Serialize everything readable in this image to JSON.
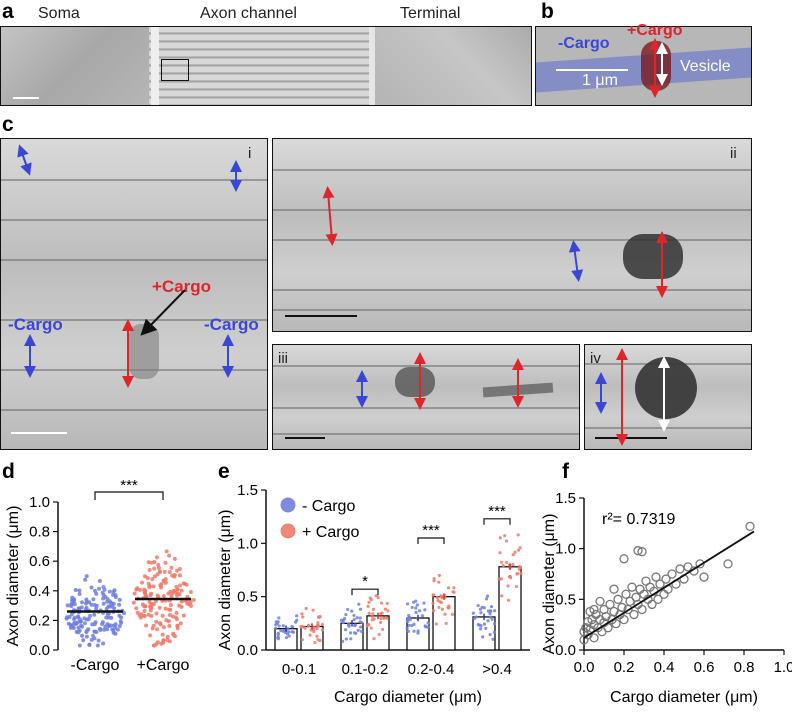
{
  "panel_a": {
    "label": "a",
    "headers": [
      "Soma",
      "Axon channel",
      "Terminal"
    ]
  },
  "panel_b": {
    "label": "b",
    "minus_cargo": "-Cargo",
    "plus_cargo": "+Cargo",
    "vesicle": "Vesicle",
    "scale": "1 μm"
  },
  "panel_c": {
    "label": "c",
    "sub": [
      "i",
      "ii",
      "iii",
      "iv"
    ],
    "plus_cargo": "+Cargo",
    "minus_cargo_left": "-Cargo",
    "minus_cargo_right": "-Cargo"
  },
  "colors": {
    "blue": "#3a47d6",
    "red": "#e0242b",
    "blue_dot": "#6f7fe0",
    "red_dot": "#ef7a6a"
  },
  "chart_data": [
    {
      "panel": "d",
      "type": "scatter",
      "ylabel": "Axon diameter (μm)",
      "yticks": [
        "0.0",
        "0.2",
        "0.4",
        "0.6",
        "0.8",
        "1.0"
      ],
      "ylim": [
        0,
        1.0
      ],
      "categories": [
        "-Cargo",
        "+Cargo"
      ],
      "means": [
        0.26,
        0.345
      ],
      "significance": "***"
    },
    {
      "panel": "e",
      "type": "bar",
      "ylabel": "Axon diameter (μm)",
      "xlabel": "Cargo diameter (μm)",
      "yticks": [
        "0.0",
        "0.5",
        "1.0",
        "1.5"
      ],
      "ylim": [
        0,
        1.5
      ],
      "categories": [
        "0-0.1",
        "0.1-0.2",
        "0.2-0.4",
        ">0.4"
      ],
      "legend": [
        "- Cargo",
        "+ Cargo"
      ],
      "series": [
        {
          "name": "- Cargo",
          "values": [
            0.2,
            0.25,
            0.3,
            0.31
          ]
        },
        {
          "name": "+ Cargo",
          "values": [
            0.22,
            0.32,
            0.5,
            0.78
          ]
        }
      ],
      "significance": [
        "",
        "*",
        "***",
        "***"
      ]
    },
    {
      "panel": "f",
      "type": "scatter",
      "ylabel": "Axon diameter (μm)",
      "xlabel": "Cargo diameter (μm)",
      "xticks": [
        "0.0",
        "0.2",
        "0.4",
        "0.6",
        "0.8",
        "1.0"
      ],
      "yticks": [
        "0.0",
        "0.5",
        "1.0",
        "1.5"
      ],
      "xlim": [
        0,
        1.0
      ],
      "ylim": [
        0,
        1.5
      ],
      "annotation": "r²= 0.7319",
      "fit": {
        "x": [
          0.0,
          0.85
        ],
        "y": [
          0.12,
          1.17
        ]
      },
      "points": [
        [
          0.0,
          0.18
        ],
        [
          0.01,
          0.22
        ],
        [
          0.02,
          0.15
        ],
        [
          0.02,
          0.28
        ],
        [
          0.03,
          0.2
        ],
        [
          0.04,
          0.3
        ],
        [
          0.05,
          0.12
        ],
        [
          0.05,
          0.25
        ],
        [
          0.06,
          0.35
        ],
        [
          0.07,
          0.22
        ],
        [
          0.08,
          0.3
        ],
        [
          0.09,
          0.18
        ],
        [
          0.1,
          0.4
        ],
        [
          0.1,
          0.27
        ],
        [
          0.11,
          0.33
        ],
        [
          0.12,
          0.22
        ],
        [
          0.13,
          0.45
        ],
        [
          0.14,
          0.3
        ],
        [
          0.15,
          0.38
        ],
        [
          0.16,
          0.26
        ],
        [
          0.17,
          0.5
        ],
        [
          0.18,
          0.35
        ],
        [
          0.19,
          0.42
        ],
        [
          0.2,
          0.3
        ],
        [
          0.21,
          0.55
        ],
        [
          0.22,
          0.4
        ],
        [
          0.23,
          0.48
        ],
        [
          0.24,
          0.62
        ],
        [
          0.25,
          0.35
        ],
        [
          0.26,
          0.52
        ],
        [
          0.27,
          0.45
        ],
        [
          0.28,
          0.6
        ],
        [
          0.29,
          0.4
        ],
        [
          0.3,
          0.55
        ],
        [
          0.31,
          0.68
        ],
        [
          0.32,
          0.5
        ],
        [
          0.33,
          0.62
        ],
        [
          0.34,
          0.45
        ],
        [
          0.35,
          0.58
        ],
        [
          0.36,
          0.72
        ],
        [
          0.37,
          0.5
        ],
        [
          0.38,
          0.65
        ],
        [
          0.4,
          0.55
        ],
        [
          0.41,
          0.7
        ],
        [
          0.42,
          0.6
        ],
        [
          0.44,
          0.75
        ],
        [
          0.46,
          0.65
        ],
        [
          0.48,
          0.8
        ],
        [
          0.5,
          0.7
        ],
        [
          0.52,
          0.82
        ],
        [
          0.55,
          0.78
        ],
        [
          0.58,
          0.85
        ],
        [
          0.27,
          0.98
        ],
        [
          0.29,
          0.97
        ],
        [
          0.2,
          0.9
        ],
        [
          0.72,
          0.85
        ],
        [
          0.83,
          1.22
        ],
        [
          0.6,
          0.72
        ],
        [
          0.15,
          0.6
        ],
        [
          0.05,
          0.4
        ],
        [
          0.0,
          0.1
        ],
        [
          0.03,
          0.38
        ],
        [
          0.08,
          0.48
        ]
      ]
    }
  ]
}
